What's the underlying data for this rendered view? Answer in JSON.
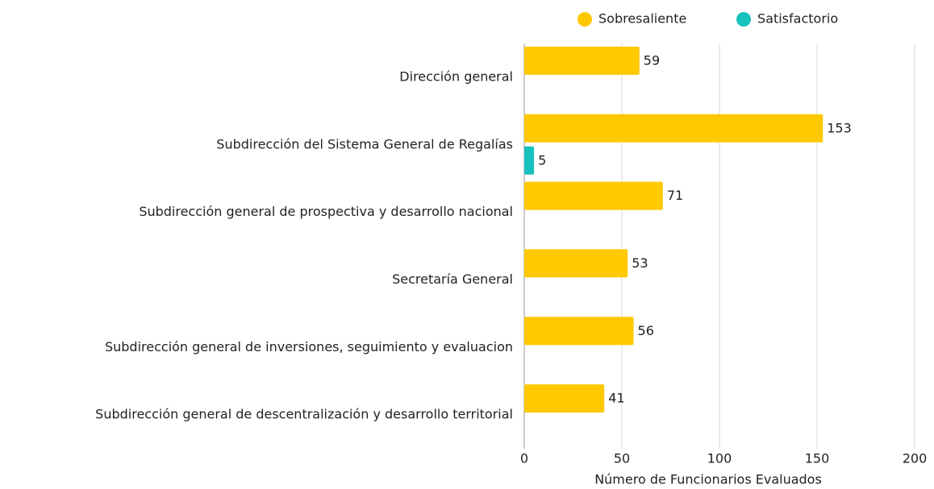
{
  "chart_data": {
    "type": "hbar",
    "categories": [
      "Dirección general",
      "Subdirección del Sistema General de Regalías",
      "Subdirección general de prospectiva y desarrollo nacional",
      "Secretaría General",
      "Subdirección general de inversiones, seguimiento y evaluacion",
      "Subdirección general de descentralización y desarrollo territorial"
    ],
    "series": [
      {
        "name": "Sobresaliente",
        "color": "#ffc800",
        "values": [
          59,
          153,
          71,
          53,
          56,
          41
        ]
      },
      {
        "name": "Satisfactorio",
        "color": "#17c2bd",
        "values": [
          null,
          5,
          null,
          null,
          null,
          null
        ]
      }
    ],
    "xlim": [
      0,
      200
    ],
    "xticks": [
      0,
      50,
      100,
      150,
      200
    ],
    "xlabel": "Número de Funcionarios Evaluados",
    "grid": true,
    "legend": "top"
  }
}
